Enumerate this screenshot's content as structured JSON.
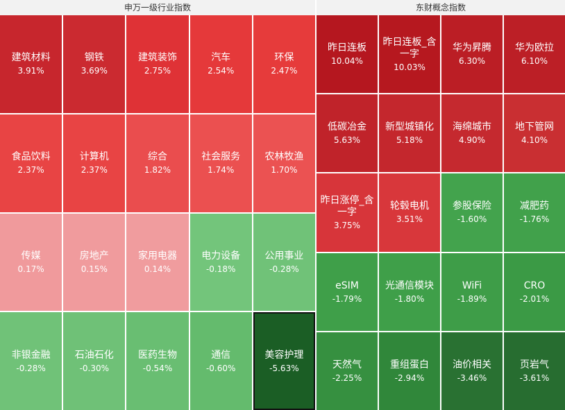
{
  "panels": [
    {
      "title": "申万一级行业指数",
      "tiles": [
        {
          "name": "建筑材料",
          "change": "3.91%",
          "color": "#c7262d"
        },
        {
          "name": "钢铁",
          "change": "3.69%",
          "color": "#cb2a30"
        },
        {
          "name": "建筑装饰",
          "change": "2.75%",
          "color": "#df3236"
        },
        {
          "name": "汽车",
          "change": "2.54%",
          "color": "#e5393a"
        },
        {
          "name": "环保",
          "change": "2.47%",
          "color": "#e63b3b"
        },
        {
          "name": "食品饮料",
          "change": "2.37%",
          "color": "#e84444"
        },
        {
          "name": "计算机",
          "change": "2.37%",
          "color": "#e84444"
        },
        {
          "name": "综合",
          "change": "1.82%",
          "color": "#ea4d4e"
        },
        {
          "name": "社会服务",
          "change": "1.74%",
          "color": "#eb5050"
        },
        {
          "name": "农林牧渔",
          "change": "1.70%",
          "color": "#eb5252"
        },
        {
          "name": "传媒",
          "change": "0.17%",
          "color": "#f09a9c"
        },
        {
          "name": "房地产",
          "change": "0.15%",
          "color": "#f09b9d"
        },
        {
          "name": "家用电器",
          "change": "0.14%",
          "color": "#f09c9e"
        },
        {
          "name": "电力设备",
          "change": "-0.18%",
          "color": "#73c57b"
        },
        {
          "name": "公用事业",
          "change": "-0.28%",
          "color": "#70c278"
        },
        {
          "name": "非银金融",
          "change": "-0.28%",
          "color": "#70c278"
        },
        {
          "name": "石油石化",
          "change": "-0.30%",
          "color": "#6fc177"
        },
        {
          "name": "医药生物",
          "change": "-0.54%",
          "color": "#69be72"
        },
        {
          "name": "通信",
          "change": "-0.60%",
          "color": "#64bb6d"
        },
        {
          "name": "美容护理",
          "change": "-5.63%",
          "color": "#1b5e25"
        }
      ]
    },
    {
      "title": "东财概念指数",
      "tiles": [
        {
          "name": "昨日连板",
          "change": "10.04%",
          "color": "#b5171f"
        },
        {
          "name": "昨日连板_含一字",
          "change": "10.03%",
          "color": "#b6181f"
        },
        {
          "name": "华为昇腾",
          "change": "6.30%",
          "color": "#bb1e25"
        },
        {
          "name": "华为欧拉",
          "change": "6.10%",
          "color": "#bc1f26"
        },
        {
          "name": "低碳冶金",
          "change": "5.63%",
          "color": "#c0232a"
        },
        {
          "name": "新型城镇化",
          "change": "5.18%",
          "color": "#c4272d"
        },
        {
          "name": "海绵城市",
          "change": "4.90%",
          "color": "#c5292f"
        },
        {
          "name": "地下管网",
          "change": "4.10%",
          "color": "#c92f32"
        },
        {
          "name": "昨日涨停_含一字",
          "change": "3.75%",
          "color": "#d7353a"
        },
        {
          "name": "轮毂电机",
          "change": "3.51%",
          "color": "#d8373b"
        },
        {
          "name": "参股保险",
          "change": "-1.60%",
          "color": "#43a34d"
        },
        {
          "name": "减肥药",
          "change": "-1.76%",
          "color": "#41a14b"
        },
        {
          "name": "eSIM",
          "change": "-1.79%",
          "color": "#3f9f49"
        },
        {
          "name": "光通信模块",
          "change": "-1.80%",
          "color": "#3f9f49"
        },
        {
          "name": "WiFi",
          "change": "-1.89%",
          "color": "#3e9d48"
        },
        {
          "name": "CRO",
          "change": "-2.01%",
          "color": "#3b9a45"
        },
        {
          "name": "天然气",
          "change": "-2.25%",
          "color": "#369040"
        },
        {
          "name": "重组蛋白",
          "change": "-2.94%",
          "color": "#30873a"
        },
        {
          "name": "油价相关",
          "change": "-3.46%",
          "color": "#297132"
        },
        {
          "name": "页岩气",
          "change": "-3.61%",
          "color": "#276d30"
        }
      ]
    }
  ]
}
